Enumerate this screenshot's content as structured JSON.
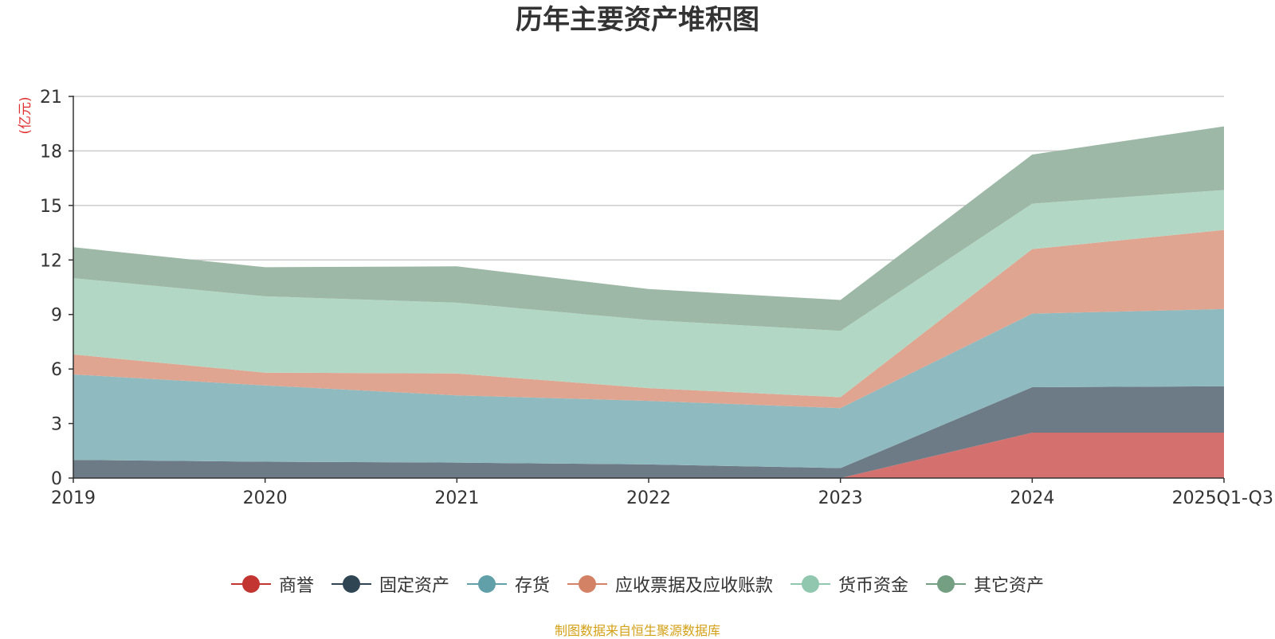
{
  "chart_data": {
    "type": "area",
    "stacked": true,
    "title": "历年主要资产堆积图",
    "ylabel": "(亿元)",
    "xlabel": "",
    "categories": [
      "2019",
      "2020",
      "2021",
      "2022",
      "2023",
      "2024",
      "2025Q1-Q3"
    ],
    "ylim": [
      0,
      21
    ],
    "yticks": [
      "0",
      "3",
      "6",
      "9",
      "12",
      "15",
      "18",
      "21"
    ],
    "grid": true,
    "legend_position": "bottom",
    "series": [
      {
        "name": "商誉",
        "color": "#c23531",
        "fill": "#d4706e",
        "values": [
          0,
          0,
          0,
          0,
          0,
          2.5,
          2.5
        ]
      },
      {
        "name": "固定资产",
        "color": "#2f4554",
        "fill": "#6d7b86",
        "values": [
          1.0,
          0.9,
          0.85,
          0.75,
          0.55,
          2.5,
          2.55
        ]
      },
      {
        "name": "存货",
        "color": "#61a0a8",
        "fill": "#8fbac0",
        "values": [
          4.7,
          4.2,
          3.7,
          3.5,
          3.3,
          4.05,
          4.25
        ]
      },
      {
        "name": "应收票据及应收账款",
        "color": "#d48265",
        "fill": "#e0a590",
        "values": [
          1.1,
          0.7,
          1.2,
          0.7,
          0.6,
          3.55,
          4.35
        ]
      },
      {
        "name": "货币资金",
        "color": "#91c7ae",
        "fill": "#b2d8c5",
        "values": [
          4.2,
          4.2,
          3.9,
          3.75,
          3.65,
          2.5,
          2.2
        ]
      },
      {
        "name": "其它资产",
        "color": "#749f83",
        "fill": "#9db8a6",
        "values": [
          1.7,
          1.6,
          2.0,
          1.7,
          1.7,
          2.7,
          3.5
        ]
      }
    ]
  },
  "footer": "制图数据来自恒生聚源数据库"
}
